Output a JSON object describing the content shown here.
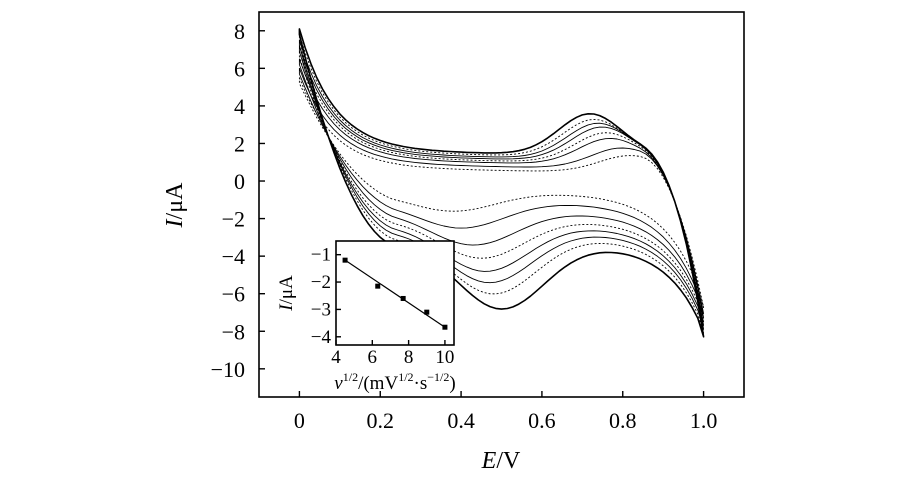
{
  "chart_data": [
    {
      "type": "line",
      "title": "",
      "xlabel": {
        "symbol": "E",
        "unit": "/V"
      },
      "ylabel": {
        "symbol": "I",
        "unit": "/μA"
      },
      "xlim": [
        -0.1,
        1.1
      ],
      "ylim": [
        -11.5,
        9
      ],
      "xticks": [
        0,
        0.2,
        0.4,
        0.6,
        0.8,
        1.0
      ],
      "xtick_labels": [
        "0",
        "0.2",
        "0.4",
        "0.6",
        "0.8",
        "1.0"
      ],
      "yticks": [
        8,
        6,
        4,
        2,
        0,
        -2,
        -4,
        -6,
        -8,
        -10
      ],
      "ytick_labels": [
        "8",
        "6",
        "4",
        "2",
        "0",
        "−2",
        "−4",
        "−6",
        "−8",
        "−10"
      ],
      "grid": false,
      "series_note": "approximate cyclic voltammograms at increasing scan rates",
      "series": [
        {
          "style": "dotted",
          "start": 5.5,
          "anodic_plateau": 0.7,
          "anodic_peak": 0.9,
          "anodic_peak_E": 0.82,
          "end": -6.5,
          "cathodic_plateau": -0.6,
          "cathodic_peak": -1.0,
          "cathodic_peak_E": 0.38
        },
        {
          "style": "solid",
          "start": 6.0,
          "anodic_plateau": 0.9,
          "anodic_peak": 1.1,
          "anodic_peak_E": 0.8,
          "end": -6.8,
          "cathodic_plateau": -1.1,
          "cathodic_peak": -1.4,
          "cathodic_peak_E": 0.4
        },
        {
          "style": "solid",
          "start": 6.5,
          "anodic_plateau": 1.1,
          "anodic_peak": 1.4,
          "anodic_peak_E": 0.77,
          "end": -7.0,
          "cathodic_plateau": -1.6,
          "cathodic_peak": -1.8,
          "cathodic_peak_E": 0.43
        },
        {
          "style": "dotted",
          "start": 6.9,
          "anodic_plateau": 1.2,
          "anodic_peak": 1.6,
          "anodic_peak_E": 0.76,
          "end": -7.2,
          "cathodic_plateau": -2.0,
          "cathodic_peak": -2.1,
          "cathodic_peak_E": 0.45
        },
        {
          "style": "solid",
          "start": 7.2,
          "anodic_plateau": 1.3,
          "anodic_peak": 1.8,
          "anodic_peak_E": 0.75,
          "end": -7.4,
          "cathodic_plateau": -2.3,
          "cathodic_peak": -2.5,
          "cathodic_peak_E": 0.46
        },
        {
          "style": "solid",
          "start": 7.5,
          "anodic_plateau": 1.4,
          "anodic_peak": 1.9,
          "anodic_peak_E": 0.74,
          "end": -7.6,
          "cathodic_plateau": -2.6,
          "cathodic_peak": -2.8,
          "cathodic_peak_E": 0.47
        },
        {
          "style": "dotted",
          "start": 7.8,
          "anodic_plateau": 1.5,
          "anodic_peak": 2.0,
          "anodic_peak_E": 0.73,
          "end": -7.8,
          "cathodic_plateau": -2.9,
          "cathodic_peak": -3.1,
          "cathodic_peak_E": 0.48
        },
        {
          "style": "bold",
          "start": 8.1,
          "anodic_plateau": 1.6,
          "anodic_peak": 2.2,
          "anodic_peak_E": 0.72,
          "end": -8.0,
          "cathodic_plateau": -3.3,
          "cathodic_peak": -3.5,
          "cathodic_peak_E": 0.5
        }
      ]
    },
    {
      "type": "scatter",
      "title": "",
      "xlabel": {
        "symbol": "v",
        "sup": "1/2",
        "unit_pre": "/(mV",
        "unit_sup1": "1/2",
        "unit_mid": "·s",
        "unit_sup2": "−1/2",
        "unit_post": ")"
      },
      "ylabel": {
        "symbol": "I",
        "unit": "/μA"
      },
      "xlim": [
        4,
        10.5
      ],
      "ylim": [
        -4.3,
        -0.5
      ],
      "xticks": [
        4,
        6,
        8,
        10
      ],
      "xtick_labels": [
        "4",
        "6",
        "8",
        "10"
      ],
      "yticks": [
        -1,
        -2,
        -3,
        -4
      ],
      "ytick_labels": [
        "−1",
        "−2",
        "−3",
        "−4"
      ],
      "grid": false,
      "x": [
        4.5,
        6.3,
        7.7,
        9.0,
        10.0
      ],
      "y": [
        -1.2,
        -2.15,
        -2.6,
        -3.1,
        -3.65
      ],
      "fit": {
        "x": [
          4.5,
          10.0
        ],
        "y": [
          -1.2,
          -3.65
        ]
      }
    }
  ]
}
